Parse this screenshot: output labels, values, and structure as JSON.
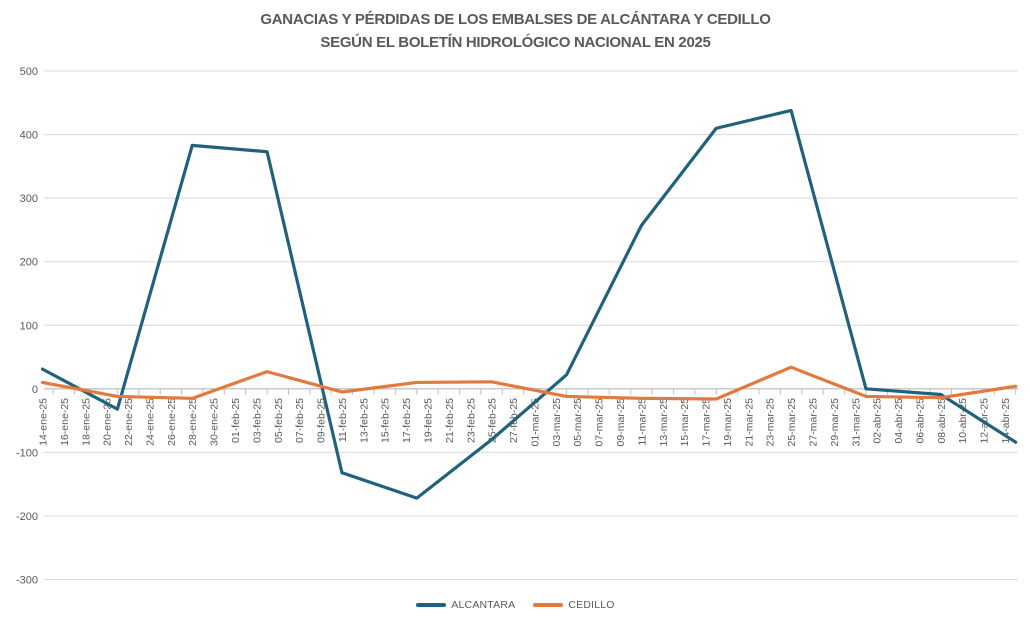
{
  "title": {
    "line1": "GANACIAS Y PÉRDIDAS DE LOS EMBALSES DE ALCÁNTARA Y CEDILLO",
    "line2": "SEGÚN EL BOLETÍN HIDROLÓGICO NACIONAL EN 2025"
  },
  "colors": {
    "gridline": "#d9d9d9",
    "axis": "#bfbfbf",
    "text": "#595959",
    "background": "#ffffff"
  },
  "chart_data": {
    "type": "line",
    "title": "GANACIAS Y PÉRDIDAS DE LOS EMBALSES DE ALCÁNTARA Y CEDILLO SEGÚN EL BOLETÍN HIDROLÓGICO NACIONAL EN 2025",
    "grid": true,
    "legend_position": "bottom",
    "y_axis": {
      "min": -300,
      "max": 500,
      "step": 100,
      "tick_labels": [
        "500",
        "400",
        "300",
        "200",
        "100",
        "0",
        "-100",
        "-200",
        "-300"
      ]
    },
    "x_axis": {
      "label_interval_days": 2,
      "tick_labels": [
        "14-ene-25",
        "16-ene-25",
        "18-ene-25",
        "20-ene-25",
        "22-ene-25",
        "24-ene-25",
        "26-ene-25",
        "28-ene-25",
        "30-ene-25",
        "01-feb-25",
        "03-feb-25",
        "05-feb-25",
        "07-feb-25",
        "09-feb-25",
        "11-feb-25",
        "13-feb-25",
        "15-feb-25",
        "17-feb-25",
        "19-feb-25",
        "21-feb-25",
        "23-feb-25",
        "25-feb-25",
        "27-feb-25",
        "01-mar-25",
        "03-mar-25",
        "05-mar-25",
        "07-mar-25",
        "09-mar-25",
        "11-mar-25",
        "13-mar-25",
        "15-mar-25",
        "17-mar-25",
        "19-mar-25",
        "21-mar-25",
        "23-mar-25",
        "25-mar-25",
        "27-mar-25",
        "29-mar-25",
        "31-mar-25",
        "02-abr-25",
        "04-abr-25",
        "06-abr-25",
        "08-abr-25",
        "10-abr-25",
        "12-abr-25",
        "14-abr-25"
      ]
    },
    "series": [
      {
        "name": "ALCANTARA",
        "color": "#20617c",
        "point_dates": [
          "14-ene-25",
          "21-ene-25",
          "28-ene-25",
          "04-feb-25",
          "11-feb-25",
          "18-feb-25",
          "25-feb-25",
          "04-mar-25",
          "11-mar-25",
          "18-mar-25",
          "25-mar-25",
          "01-abr-25",
          "08-abr-25",
          "15-abr-25"
        ],
        "day_offsets": [
          0,
          7,
          14,
          21,
          28,
          35,
          42,
          49,
          56,
          63,
          70,
          77,
          84,
          91
        ],
        "values": [
          31,
          -32,
          383,
          373,
          -132,
          -172,
          -80,
          22,
          257,
          410,
          438,
          0,
          -9,
          -84
        ]
      },
      {
        "name": "CEDILLO",
        "color": "#e2793e",
        "point_dates": [
          "14-ene-25",
          "21-ene-25",
          "28-ene-25",
          "04-feb-25",
          "11-feb-25",
          "18-feb-25",
          "25-feb-25",
          "04-mar-25",
          "11-mar-25",
          "18-mar-25",
          "25-mar-25",
          "01-abr-25",
          "08-abr-25",
          "15-abr-25"
        ],
        "day_offsets": [
          0,
          7,
          14,
          21,
          28,
          35,
          42,
          49,
          56,
          63,
          70,
          77,
          84,
          91
        ],
        "values": [
          10,
          -12,
          -15,
          27,
          -5,
          10,
          11,
          -12,
          -15,
          -16,
          34,
          -12,
          -14,
          4
        ]
      }
    ]
  }
}
